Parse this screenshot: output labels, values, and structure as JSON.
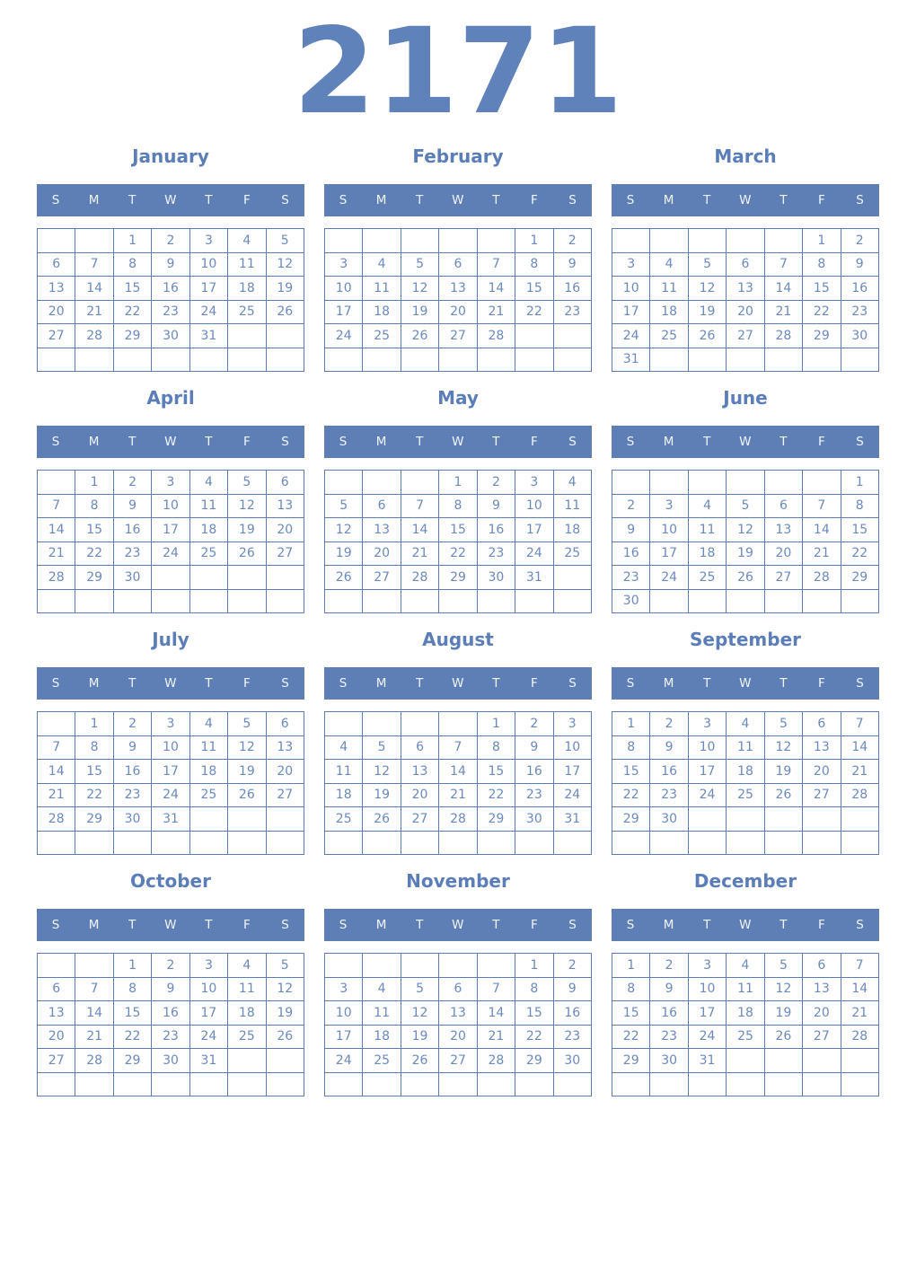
{
  "year": "2171",
  "colors": {
    "accent": "#5b7db8",
    "header_bg": "#5d7fb6",
    "grid_border": "#5b7db4",
    "day_text": "#6c89bd",
    "year_text": "#6082ba",
    "background": "#ffffff"
  },
  "weekday_headers": [
    "S",
    "M",
    "T",
    "W",
    "T",
    "F",
    "S"
  ],
  "months": [
    {
      "name": "January",
      "weeks": [
        [
          "",
          "",
          "1",
          "2",
          "3",
          "4",
          "5"
        ],
        [
          "6",
          "7",
          "8",
          "9",
          "10",
          "11",
          "12"
        ],
        [
          "13",
          "14",
          "15",
          "16",
          "17",
          "18",
          "19"
        ],
        [
          "20",
          "21",
          "22",
          "23",
          "24",
          "25",
          "26"
        ],
        [
          "27",
          "28",
          "29",
          "30",
          "31",
          "",
          ""
        ],
        [
          "",
          "",
          "",
          "",
          "",
          "",
          ""
        ]
      ]
    },
    {
      "name": "February",
      "weeks": [
        [
          "",
          "",
          "",
          "",
          "",
          "1",
          "2"
        ],
        [
          "3",
          "4",
          "5",
          "6",
          "7",
          "8",
          "9"
        ],
        [
          "10",
          "11",
          "12",
          "13",
          "14",
          "15",
          "16"
        ],
        [
          "17",
          "18",
          "19",
          "20",
          "21",
          "22",
          "23"
        ],
        [
          "24",
          "25",
          "26",
          "27",
          "28",
          "",
          ""
        ],
        [
          "",
          "",
          "",
          "",
          "",
          "",
          ""
        ]
      ]
    },
    {
      "name": "March",
      "weeks": [
        [
          "",
          "",
          "",
          "",
          "",
          "1",
          "2"
        ],
        [
          "3",
          "4",
          "5",
          "6",
          "7",
          "8",
          "9"
        ],
        [
          "10",
          "11",
          "12",
          "13",
          "14",
          "15",
          "16"
        ],
        [
          "17",
          "18",
          "19",
          "20",
          "21",
          "22",
          "23"
        ],
        [
          "24",
          "25",
          "26",
          "27",
          "28",
          "29",
          "30"
        ],
        [
          "31",
          "",
          "",
          "",
          "",
          "",
          ""
        ]
      ]
    },
    {
      "name": "April",
      "weeks": [
        [
          "",
          "1",
          "2",
          "3",
          "4",
          "5",
          "6"
        ],
        [
          "7",
          "8",
          "9",
          "10",
          "11",
          "12",
          "13"
        ],
        [
          "14",
          "15",
          "16",
          "17",
          "18",
          "19",
          "20"
        ],
        [
          "21",
          "22",
          "23",
          "24",
          "25",
          "26",
          "27"
        ],
        [
          "28",
          "29",
          "30",
          "",
          "",
          "",
          ""
        ],
        [
          "",
          "",
          "",
          "",
          "",
          "",
          ""
        ]
      ]
    },
    {
      "name": "May",
      "weeks": [
        [
          "",
          "",
          "",
          "1",
          "2",
          "3",
          "4"
        ],
        [
          "5",
          "6",
          "7",
          "8",
          "9",
          "10",
          "11"
        ],
        [
          "12",
          "13",
          "14",
          "15",
          "16",
          "17",
          "18"
        ],
        [
          "19",
          "20",
          "21",
          "22",
          "23",
          "24",
          "25"
        ],
        [
          "26",
          "27",
          "28",
          "29",
          "30",
          "31",
          ""
        ],
        [
          "",
          "",
          "",
          "",
          "",
          "",
          ""
        ]
      ]
    },
    {
      "name": "June",
      "weeks": [
        [
          "",
          "",
          "",
          "",
          "",
          "",
          "1"
        ],
        [
          "2",
          "3",
          "4",
          "5",
          "6",
          "7",
          "8"
        ],
        [
          "9",
          "10",
          "11",
          "12",
          "13",
          "14",
          "15"
        ],
        [
          "16",
          "17",
          "18",
          "19",
          "20",
          "21",
          "22"
        ],
        [
          "23",
          "24",
          "25",
          "26",
          "27",
          "28",
          "29"
        ],
        [
          "30",
          "",
          "",
          "",
          "",
          "",
          ""
        ]
      ]
    },
    {
      "name": "July",
      "weeks": [
        [
          "",
          "1",
          "2",
          "3",
          "4",
          "5",
          "6"
        ],
        [
          "7",
          "8",
          "9",
          "10",
          "11",
          "12",
          "13"
        ],
        [
          "14",
          "15",
          "16",
          "17",
          "18",
          "19",
          "20"
        ],
        [
          "21",
          "22",
          "23",
          "24",
          "25",
          "26",
          "27"
        ],
        [
          "28",
          "29",
          "30",
          "31",
          "",
          "",
          ""
        ],
        [
          "",
          "",
          "",
          "",
          "",
          "",
          ""
        ]
      ]
    },
    {
      "name": "August",
      "weeks": [
        [
          "",
          "",
          "",
          "",
          "1",
          "2",
          "3"
        ],
        [
          "4",
          "5",
          "6",
          "7",
          "8",
          "9",
          "10"
        ],
        [
          "11",
          "12",
          "13",
          "14",
          "15",
          "16",
          "17"
        ],
        [
          "18",
          "19",
          "20",
          "21",
          "22",
          "23",
          "24"
        ],
        [
          "25",
          "26",
          "27",
          "28",
          "29",
          "30",
          "31"
        ],
        [
          "",
          "",
          "",
          "",
          "",
          "",
          ""
        ]
      ]
    },
    {
      "name": "September",
      "weeks": [
        [
          "1",
          "2",
          "3",
          "4",
          "5",
          "6",
          "7"
        ],
        [
          "8",
          "9",
          "10",
          "11",
          "12",
          "13",
          "14"
        ],
        [
          "15",
          "16",
          "17",
          "18",
          "19",
          "20",
          "21"
        ],
        [
          "22",
          "23",
          "24",
          "25",
          "26",
          "27",
          "28"
        ],
        [
          "29",
          "30",
          "",
          "",
          "",
          "",
          ""
        ],
        [
          "",
          "",
          "",
          "",
          "",
          "",
          ""
        ]
      ]
    },
    {
      "name": "October",
      "weeks": [
        [
          "",
          "",
          "1",
          "2",
          "3",
          "4",
          "5"
        ],
        [
          "6",
          "7",
          "8",
          "9",
          "10",
          "11",
          "12"
        ],
        [
          "13",
          "14",
          "15",
          "16",
          "17",
          "18",
          "19"
        ],
        [
          "20",
          "21",
          "22",
          "23",
          "24",
          "25",
          "26"
        ],
        [
          "27",
          "28",
          "29",
          "30",
          "31",
          "",
          ""
        ],
        [
          "",
          "",
          "",
          "",
          "",
          "",
          ""
        ]
      ]
    },
    {
      "name": "November",
      "weeks": [
        [
          "",
          "",
          "",
          "",
          "",
          "1",
          "2"
        ],
        [
          "3",
          "4",
          "5",
          "6",
          "7",
          "8",
          "9"
        ],
        [
          "10",
          "11",
          "12",
          "13",
          "14",
          "15",
          "16"
        ],
        [
          "17",
          "18",
          "19",
          "20",
          "21",
          "22",
          "23"
        ],
        [
          "24",
          "25",
          "26",
          "27",
          "28",
          "29",
          "30"
        ],
        [
          "",
          "",
          "",
          "",
          "",
          "",
          ""
        ]
      ]
    },
    {
      "name": "December",
      "weeks": [
        [
          "1",
          "2",
          "3",
          "4",
          "5",
          "6",
          "7"
        ],
        [
          "8",
          "9",
          "10",
          "11",
          "12",
          "13",
          "14"
        ],
        [
          "15",
          "16",
          "17",
          "18",
          "19",
          "20",
          "21"
        ],
        [
          "22",
          "23",
          "24",
          "25",
          "26",
          "27",
          "28"
        ],
        [
          "29",
          "30",
          "31",
          "",
          "",
          "",
          ""
        ],
        [
          "",
          "",
          "",
          "",
          "",
          "",
          ""
        ]
      ]
    }
  ]
}
